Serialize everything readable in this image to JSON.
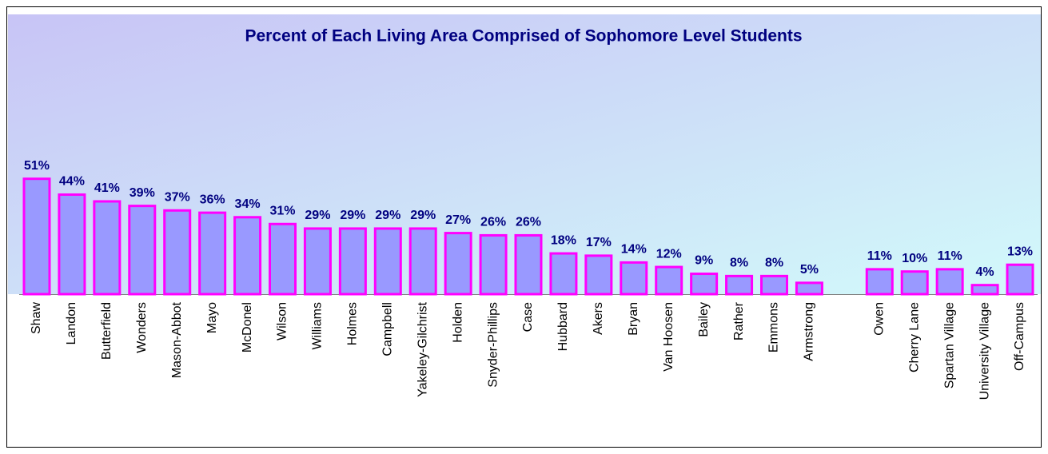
{
  "chart_data": {
    "type": "bar",
    "title": "Percent of Each Living Area Comprised of Sophomore Level Students",
    "categories": [
      "Shaw",
      "Landon",
      "Butterfield",
      "Wonders",
      "Mason-Abbot",
      "Mayo",
      "McDonel",
      "Wilson",
      "Williams",
      "Holmes",
      "Campbell",
      "Yakeley-Gilchrist",
      "Holden",
      "Snyder-Phillips",
      "Case",
      "Hubbard",
      "Akers",
      "Bryan",
      "Van Hoosen",
      "Bailey",
      "Rather",
      "Emmons",
      "Armstrong",
      null,
      "Owen",
      "Cherry Lane",
      "Spartan Village",
      "University Village",
      "Off-Campus"
    ],
    "values": [
      51,
      44,
      41,
      39,
      37,
      36,
      34,
      31,
      29,
      29,
      29,
      29,
      27,
      26,
      26,
      18,
      17,
      14,
      12,
      9,
      8,
      8,
      5,
      null,
      11,
      10,
      11,
      4,
      13
    ],
    "value_labels": [
      "51%",
      "44%",
      "41%",
      "39%",
      "37%",
      "36%",
      "34%",
      "31%",
      "29%",
      "29%",
      "29%",
      "29%",
      "27%",
      "26%",
      "26%",
      "18%",
      "17%",
      "14%",
      "12%",
      "9%",
      "8%",
      "8%",
      "5%",
      null,
      "11%",
      "10%",
      "11%",
      "4%",
      "13%"
    ],
    "color": "#9999ff"
  }
}
